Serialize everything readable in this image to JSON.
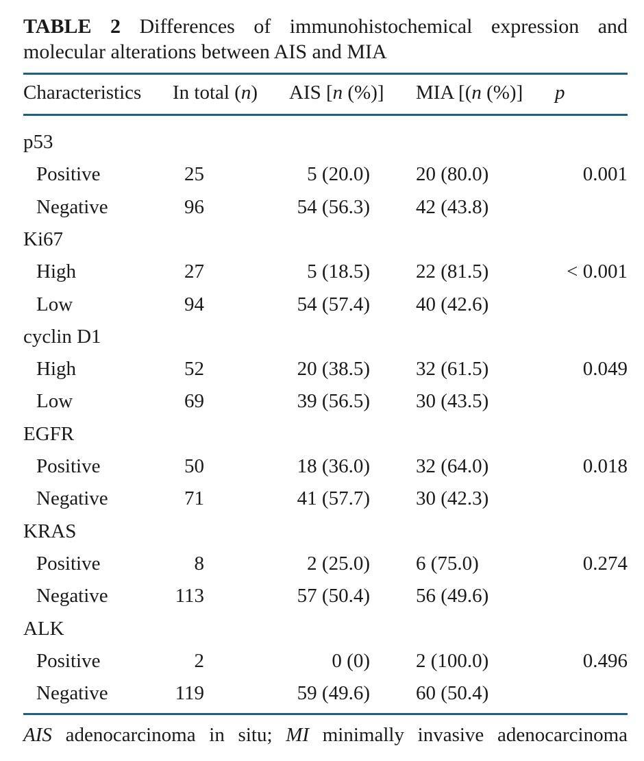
{
  "caption": {
    "label": "TABLE 2",
    "text": "Differences of immunohistochemical expression and molecular alterations between AIS and MIA"
  },
  "headers": {
    "characteristics": "Characteristics",
    "total_pre": "In total (",
    "total_n": "n",
    "total_post": ")",
    "ais_pre": "AIS [",
    "ais_n": "n",
    "ais_post": " (%)]",
    "mia_pre": "MIA [(",
    "mia_n": "n",
    "mia_post": " (%)]",
    "p": "p"
  },
  "groups": [
    {
      "name": "p53",
      "rows": [
        {
          "label": "Positive",
          "total": "25",
          "ais": "5 (20.0)",
          "mia": "20 (80.0)",
          "p": "0.001"
        },
        {
          "label": "Negative",
          "total": "96",
          "ais": "54 (56.3)",
          "mia": "42 (43.8)",
          "p": ""
        }
      ]
    },
    {
      "name": "Ki67",
      "rows": [
        {
          "label": "High",
          "total": "27",
          "ais": "5 (18.5)",
          "mia": "22 (81.5)",
          "p": "< 0.001"
        },
        {
          "label": "Low",
          "total": "94",
          "ais": "54 (57.4)",
          "mia": "40 (42.6)",
          "p": ""
        }
      ]
    },
    {
      "name": "cyclin D1",
      "rows": [
        {
          "label": "High",
          "total": "52",
          "ais": "20 (38.5)",
          "mia": "32 (61.5)",
          "p": "0.049"
        },
        {
          "label": "Low",
          "total": "69",
          "ais": "39 (56.5)",
          "mia": "30 (43.5)",
          "p": ""
        }
      ]
    },
    {
      "name": "EGFR",
      "rows": [
        {
          "label": "Positive",
          "total": "50",
          "ais": "18 (36.0)",
          "mia": "32 (64.0)",
          "p": "0.018"
        },
        {
          "label": "Negative",
          "total": "71",
          "ais": "41 (57.7)",
          "mia": "30 (42.3)",
          "p": ""
        }
      ]
    },
    {
      "name": "KRAS",
      "rows": [
        {
          "label": "Positive",
          "total": "8",
          "ais": "2 (25.0)",
          "mia": "6 (75.0)",
          "p": "0.274"
        },
        {
          "label": "Negative",
          "total": "113",
          "ais": "57 (50.4)",
          "mia": "56 (49.6)",
          "p": ""
        }
      ]
    },
    {
      "name": "ALK",
      "rows": [
        {
          "label": "Positive",
          "total": "2",
          "ais": "0 (0)",
          "mia": "2 (100.0)",
          "p": "0.496"
        },
        {
          "label": "Negative",
          "total": "119",
          "ais": "59 (49.6)",
          "mia": "60 (50.4)",
          "p": ""
        }
      ]
    }
  ],
  "footnote": {
    "abbr1": "AIS",
    "def1": "adenocarcinoma in situ;",
    "abbr2": "MI",
    "def2": "minimally invasive adenocarcinoma"
  },
  "colors": {
    "rule": "#1f5f7f",
    "text": "#1a1a1a"
  }
}
